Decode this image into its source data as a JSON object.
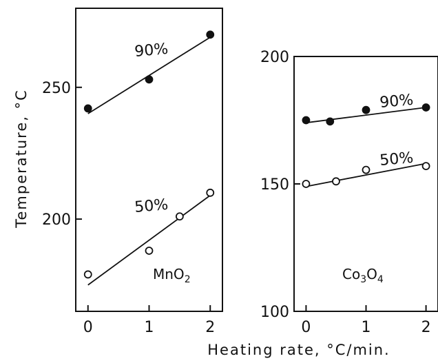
{
  "figure": {
    "ylabel": "Temperature, °C",
    "xlabel": "Heating rate, °C/min."
  },
  "chart_data": [
    {
      "type": "scatter",
      "panel_label": "MnO2",
      "panel_label_base": "MnO",
      "panel_label_sub": "2",
      "xlim": [
        -0.2,
        2.2
      ],
      "ylim": [
        165,
        280
      ],
      "x_ticks": [
        0,
        1,
        2
      ],
      "x_tick_labels": [
        "0",
        "1",
        "2"
      ],
      "y_ticks": [
        200,
        250
      ],
      "y_tick_labels": [
        "200",
        "250"
      ],
      "series": [
        {
          "name": "90%",
          "marker": "filled-circle",
          "points": [
            {
              "x": 0,
              "y": 242
            },
            {
              "x": 1,
              "y": 253
            },
            {
              "x": 2,
              "y": 270
            }
          ],
          "fit": {
            "x0": 0,
            "y0": 240,
            "x1": 2,
            "y1": 269
          }
        },
        {
          "name": "50%",
          "marker": "open-circle",
          "points": [
            {
              "x": 0,
              "y": 179
            },
            {
              "x": 1,
              "y": 188
            },
            {
              "x": 1.5,
              "y": 201
            },
            {
              "x": 2,
              "y": 210
            }
          ],
          "fit": {
            "x0": 0,
            "y0": 175,
            "x1": 2,
            "y1": 209
          }
        }
      ]
    },
    {
      "type": "scatter",
      "panel_label": "Co3O4",
      "panel_label_parts": [
        "Co",
        "3",
        "O",
        "4"
      ],
      "xlim": [
        -0.2,
        2.2
      ],
      "ylim": [
        100,
        200
      ],
      "x_ticks": [
        0,
        1,
        2
      ],
      "x_tick_labels": [
        "0",
        "1",
        "2"
      ],
      "y_ticks": [
        100,
        150,
        200
      ],
      "y_tick_labels": [
        "100",
        "150",
        "200"
      ],
      "series": [
        {
          "name": "90%",
          "marker": "filled-circle",
          "points": [
            {
              "x": 0,
              "y": 175
            },
            {
              "x": 0.4,
              "y": 174.5
            },
            {
              "x": 1,
              "y": 179
            },
            {
              "x": 2,
              "y": 180
            }
          ],
          "fit": {
            "x0": 0,
            "y0": 174,
            "x1": 2,
            "y1": 180
          }
        },
        {
          "name": "50%",
          "marker": "open-circle",
          "points": [
            {
              "x": 0,
              "y": 150
            },
            {
              "x": 0.5,
              "y": 151
            },
            {
              "x": 1,
              "y": 155.5
            },
            {
              "x": 2,
              "y": 157
            }
          ],
          "fit": {
            "x0": 0,
            "y0": 149,
            "x1": 2,
            "y1": 158
          }
        }
      ]
    }
  ]
}
